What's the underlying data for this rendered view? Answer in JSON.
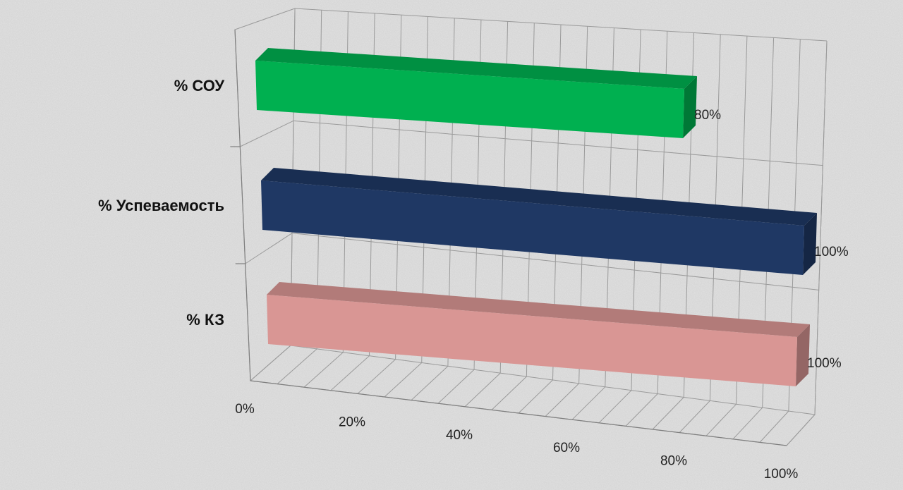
{
  "chart_data": {
    "type": "bar",
    "orientation": "horizontal",
    "style": "3d",
    "categories": [
      "% СОУ",
      "% Успеваемость",
      "% КЗ"
    ],
    "values": [
      80,
      100,
      100
    ],
    "value_labels": [
      "80%",
      "100%",
      "100%"
    ],
    "bar_colors": [
      "#00b050",
      "#1f3864",
      "#d99694"
    ],
    "x_ticks": [
      0,
      20,
      40,
      60,
      80,
      100
    ],
    "x_tick_labels": [
      "0%",
      "20%",
      "40%",
      "60%",
      "80%",
      "100%"
    ],
    "xlim": [
      0,
      100
    ],
    "grid": true,
    "legend": "none",
    "title": "",
    "xlabel": "",
    "ylabel": ""
  }
}
